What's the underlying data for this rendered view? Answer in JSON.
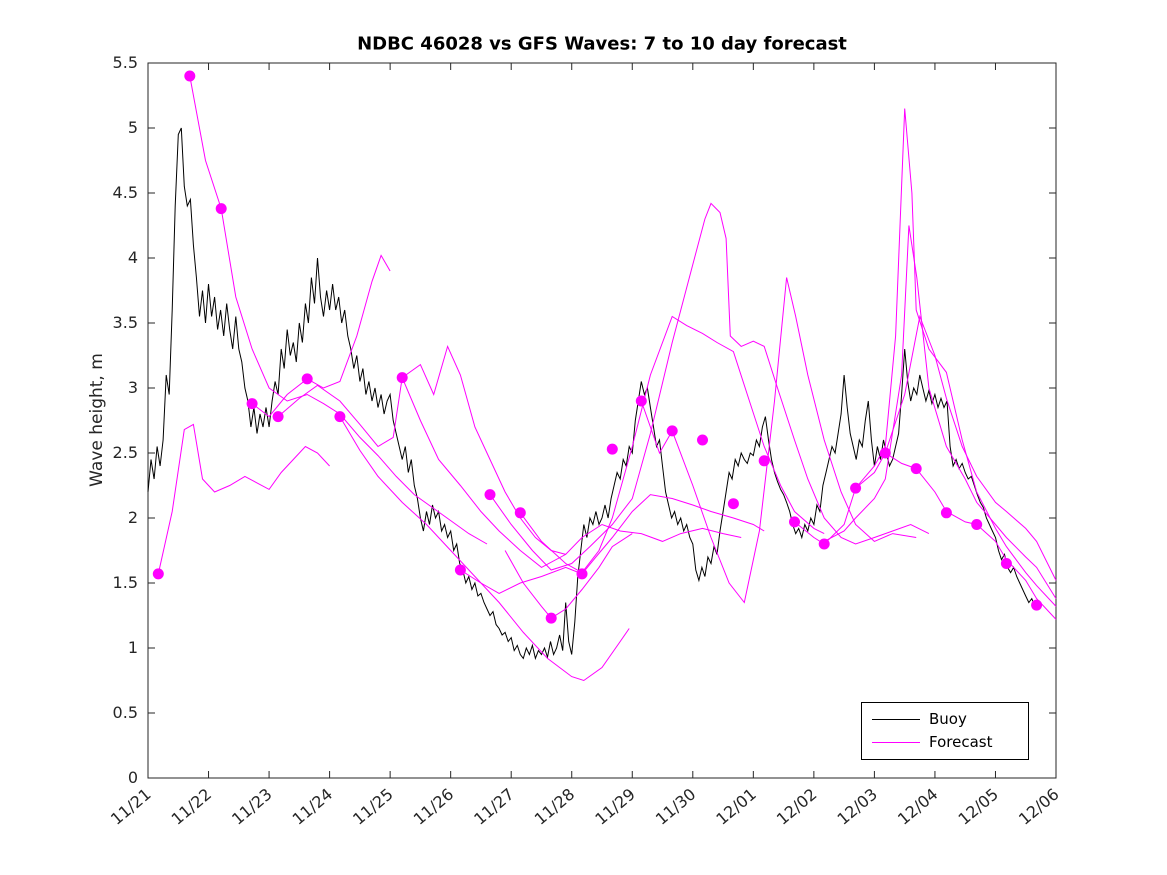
{
  "chart_data": {
    "type": "line",
    "title": "NDBC 46028 vs GFS Waves: 7 to 10 day forecast",
    "xlabel": "",
    "ylabel": "Wave height, m",
    "grid": false,
    "x_range_days": [
      0,
      15
    ],
    "ylim": [
      0,
      5.5
    ],
    "y_ticks": [
      0,
      0.5,
      1,
      1.5,
      2,
      2.5,
      3,
      3.5,
      4,
      4.5,
      5,
      5.5
    ],
    "x_tick_labels": [
      "11/21",
      "11/22",
      "11/23",
      "11/24",
      "11/25",
      "11/26",
      "11/27",
      "11/28",
      "11/29",
      "11/30",
      "12/01",
      "12/02",
      "12/03",
      "12/04",
      "12/05",
      "12/06"
    ],
    "colors": {
      "buoy": "#000000",
      "forecast": "#ff00ff",
      "axis": "#262626"
    },
    "legend": {
      "position": "bottom-right",
      "entries": [
        {
          "label": "Buoy",
          "color": "#000000"
        },
        {
          "label": "Forecast",
          "color": "#ff00ff"
        }
      ]
    },
    "buoy_series": {
      "name": "Buoy",
      "t_start": 0,
      "t_step": 0.05,
      "values": [
        2.2,
        2.45,
        2.3,
        2.55,
        2.4,
        2.6,
        3.1,
        2.95,
        3.6,
        4.4,
        4.95,
        5.0,
        4.55,
        4.4,
        4.45,
        4.1,
        3.85,
        3.55,
        3.75,
        3.5,
        3.8,
        3.55,
        3.7,
        3.45,
        3.6,
        3.4,
        3.65,
        3.45,
        3.3,
        3.55,
        3.3,
        3.2,
        3.0,
        2.9,
        2.7,
        2.85,
        2.65,
        2.8,
        2.7,
        2.85,
        2.7,
        2.9,
        3.05,
        2.95,
        3.3,
        3.15,
        3.45,
        3.25,
        3.35,
        3.2,
        3.5,
        3.35,
        3.65,
        3.5,
        3.85,
        3.65,
        4.0,
        3.7,
        3.55,
        3.75,
        3.6,
        3.8,
        3.6,
        3.7,
        3.5,
        3.6,
        3.4,
        3.3,
        3.15,
        3.25,
        3.05,
        3.15,
        2.95,
        3.05,
        2.9,
        3.0,
        2.85,
        2.95,
        2.8,
        2.9,
        2.95,
        2.75,
        2.65,
        2.55,
        2.45,
        2.55,
        2.35,
        2.45,
        2.25,
        2.15,
        2.0,
        1.9,
        2.05,
        1.95,
        2.1,
        2.0,
        2.05,
        1.9,
        1.95,
        1.85,
        1.9,
        1.75,
        1.8,
        1.65,
        1.6,
        1.5,
        1.55,
        1.45,
        1.5,
        1.4,
        1.42,
        1.35,
        1.3,
        1.25,
        1.28,
        1.18,
        1.15,
        1.1,
        1.12,
        1.05,
        1.08,
        0.98,
        1.02,
        0.95,
        0.92,
        1.0,
        0.95,
        1.02,
        0.92,
        0.98,
        0.95,
        1.0,
        0.93,
        1.05,
        0.95,
        1.0,
        1.1,
        0.98,
        1.35,
        1.05,
        0.95,
        1.2,
        1.55,
        1.75,
        1.95,
        1.85,
        2.0,
        1.95,
        2.05,
        1.95,
        2.0,
        2.1,
        2.0,
        2.15,
        2.25,
        2.35,
        2.3,
        2.45,
        2.4,
        2.55,
        2.5,
        2.75,
        2.9,
        3.05,
        2.95,
        3.0,
        2.85,
        2.7,
        2.55,
        2.6,
        2.4,
        2.2,
        2.1,
        2.0,
        2.05,
        1.95,
        2.0,
        1.9,
        1.95,
        1.85,
        1.8,
        1.6,
        1.52,
        1.62,
        1.55,
        1.7,
        1.65,
        1.78,
        1.72,
        1.9,
        2.05,
        2.2,
        2.35,
        2.3,
        2.45,
        2.4,
        2.5,
        2.45,
        2.42,
        2.5,
        2.48,
        2.6,
        2.55,
        2.7,
        2.78,
        2.6,
        2.45,
        2.35,
        2.28,
        2.22,
        2.18,
        2.12,
        2.05,
        1.95,
        1.88,
        1.92,
        1.85,
        1.95,
        1.9,
        2.0,
        1.95,
        2.1,
        2.05,
        2.25,
        2.35,
        2.45,
        2.55,
        2.5,
        2.65,
        2.8,
        3.1,
        2.85,
        2.65,
        2.55,
        2.45,
        2.6,
        2.55,
        2.75,
        2.9,
        2.6,
        2.4,
        2.55,
        2.45,
        2.6,
        2.5,
        2.4,
        2.45,
        2.55,
        2.65,
        2.95,
        3.3,
        3.05,
        2.9,
        3.0,
        2.95,
        3.1,
        3.0,
        2.9,
        2.98,
        2.88,
        2.95,
        2.85,
        2.92,
        2.85,
        2.9,
        2.55,
        2.4,
        2.45,
        2.38,
        2.42,
        2.35,
        2.3,
        2.32,
        2.25,
        2.18,
        2.12,
        2.08,
        2.0,
        1.95,
        1.9,
        1.85,
        1.75,
        1.68,
        1.72,
        1.62,
        1.58,
        1.62,
        1.55,
        1.5,
        1.45,
        1.4,
        1.35,
        1.38,
        1.32,
        1.35
      ]
    },
    "forecast_series": [
      [
        [
          0.17,
          1.57
        ],
        [
          0.4,
          2.05
        ],
        [
          0.6,
          2.68
        ],
        [
          0.75,
          2.72
        ],
        [
          0.9,
          2.3
        ],
        [
          1.1,
          2.2
        ],
        [
          1.35,
          2.25
        ],
        [
          1.6,
          2.32
        ],
        [
          1.8,
          2.27
        ],
        [
          2.0,
          2.22
        ],
        [
          2.2,
          2.35
        ],
        [
          2.4,
          2.45
        ],
        [
          2.6,
          2.55
        ],
        [
          2.8,
          2.5
        ],
        [
          3.0,
          2.4
        ]
      ],
      [
        [
          0.69,
          5.4
        ],
        [
          0.95,
          4.75
        ],
        [
          1.21,
          4.38
        ],
        [
          1.45,
          3.7
        ],
        [
          1.72,
          3.3
        ],
        [
          2.0,
          3.0
        ],
        [
          2.3,
          2.9
        ],
        [
          2.63,
          2.95
        ],
        [
          2.9,
          2.88
        ],
        [
          3.17,
          2.8
        ],
        [
          3.5,
          2.62
        ],
        [
          3.8,
          2.48
        ],
        [
          4.1,
          2.32
        ],
        [
          4.4,
          2.18
        ],
        [
          4.7,
          2.08
        ],
        [
          5.0,
          1.98
        ],
        [
          5.3,
          1.88
        ],
        [
          5.6,
          1.8
        ]
      ],
      [
        [
          1.72,
          2.88
        ],
        [
          2.0,
          2.78
        ],
        [
          2.3,
          2.95
        ],
        [
          2.63,
          3.07
        ],
        [
          2.9,
          3.0
        ],
        [
          3.17,
          3.05
        ],
        [
          3.45,
          3.4
        ],
        [
          3.7,
          3.82
        ],
        [
          3.85,
          4.02
        ],
        [
          4.0,
          3.9
        ]
      ],
      [
        [
          2.15,
          2.78
        ],
        [
          2.5,
          2.92
        ],
        [
          2.8,
          3.02
        ],
        [
          3.17,
          2.9
        ],
        [
          3.5,
          2.72
        ],
        [
          3.8,
          2.55
        ],
        [
          4.05,
          2.62
        ],
        [
          4.2,
          3.08
        ],
        [
          4.5,
          3.18
        ],
        [
          4.72,
          2.95
        ],
        [
          4.95,
          3.32
        ],
        [
          5.16,
          3.1
        ],
        [
          5.4,
          2.7
        ],
        [
          5.65,
          2.45
        ],
        [
          5.9,
          2.2
        ],
        [
          6.15,
          2.0
        ],
        [
          6.4,
          1.85
        ],
        [
          6.66,
          1.75
        ],
        [
          6.9,
          1.72
        ]
      ],
      [
        [
          3.17,
          2.78
        ],
        [
          3.5,
          2.52
        ],
        [
          3.8,
          2.32
        ],
        [
          4.2,
          2.12
        ],
        [
          4.6,
          1.95
        ],
        [
          5.0,
          1.75
        ],
        [
          5.4,
          1.55
        ],
        [
          5.8,
          1.35
        ],
        [
          6.2,
          1.12
        ],
        [
          6.6,
          0.92
        ],
        [
          7.0,
          0.78
        ],
        [
          7.2,
          0.75
        ],
        [
          7.5,
          0.85
        ],
        [
          7.8,
          1.05
        ],
        [
          7.95,
          1.15
        ]
      ],
      [
        [
          4.2,
          3.08
        ],
        [
          4.5,
          2.75
        ],
        [
          4.8,
          2.45
        ],
        [
          5.16,
          2.25
        ],
        [
          5.5,
          2.05
        ],
        [
          5.8,
          1.9
        ],
        [
          6.15,
          1.75
        ],
        [
          6.5,
          1.62
        ],
        [
          6.9,
          1.72
        ],
        [
          7.17,
          1.85
        ],
        [
          7.5,
          1.95
        ],
        [
          7.8,
          1.9
        ],
        [
          8.15,
          1.88
        ],
        [
          8.5,
          1.82
        ],
        [
          8.8,
          1.88
        ],
        [
          9.16,
          1.92
        ],
        [
          9.5,
          1.88
        ],
        [
          9.8,
          1.85
        ]
      ],
      [
        [
          5.16,
          1.6
        ],
        [
          5.5,
          1.5
        ],
        [
          5.8,
          1.42
        ],
        [
          6.15,
          1.5
        ],
        [
          6.5,
          1.55
        ],
        [
          6.9,
          1.62
        ],
        [
          7.17,
          1.57
        ],
        [
          7.4,
          1.7
        ],
        [
          7.67,
          1.85
        ],
        [
          8.0,
          2.05
        ],
        [
          8.3,
          2.18
        ],
        [
          8.66,
          2.15
        ],
        [
          9.0,
          2.1
        ],
        [
          9.3,
          2.05
        ],
        [
          9.67,
          2.0
        ],
        [
          10.0,
          1.95
        ],
        [
          10.18,
          1.9
        ]
      ],
      [
        [
          5.65,
          2.18
        ],
        [
          6.0,
          1.95
        ],
        [
          6.35,
          1.75
        ],
        [
          6.66,
          1.6
        ],
        [
          7.0,
          1.65
        ],
        [
          7.3,
          1.78
        ],
        [
          7.67,
          1.95
        ],
        [
          8.0,
          2.15
        ],
        [
          8.3,
          2.65
        ],
        [
          8.66,
          3.35
        ],
        [
          9.0,
          3.95
        ],
        [
          9.2,
          4.3
        ],
        [
          9.3,
          4.42
        ],
        [
          9.45,
          4.35
        ],
        [
          9.55,
          4.15
        ],
        [
          9.62,
          3.4
        ],
        [
          9.8,
          3.32
        ],
        [
          10.0,
          3.36
        ],
        [
          10.18,
          3.32
        ],
        [
          10.4,
          3.0
        ],
        [
          10.68,
          2.6
        ],
        [
          10.9,
          2.3
        ],
        [
          11.17,
          2.0
        ],
        [
          11.45,
          1.85
        ],
        [
          11.69,
          1.8
        ],
        [
          12.0,
          1.85
        ],
        [
          12.3,
          1.9
        ],
        [
          12.6,
          1.95
        ],
        [
          12.9,
          1.88
        ]
      ],
      [
        [
          6.15,
          2.04
        ],
        [
          6.5,
          1.82
        ],
        [
          6.9,
          1.65
        ],
        [
          7.17,
          1.58
        ],
        [
          7.45,
          1.75
        ],
        [
          7.67,
          2.0
        ],
        [
          8.0,
          2.55
        ],
        [
          8.3,
          3.1
        ],
        [
          8.66,
          3.55
        ],
        [
          8.9,
          3.48
        ],
        [
          9.16,
          3.42
        ],
        [
          9.4,
          3.35
        ],
        [
          9.67,
          3.28
        ],
        [
          9.9,
          2.95
        ],
        [
          10.18,
          2.55
        ],
        [
          10.45,
          2.25
        ],
        [
          10.68,
          2.05
        ],
        [
          11.0,
          1.92
        ],
        [
          11.17,
          1.88
        ]
      ],
      [
        [
          5.9,
          1.75
        ],
        [
          6.2,
          1.5
        ],
        [
          6.5,
          1.32
        ],
        [
          6.66,
          1.23
        ],
        [
          6.9,
          1.3
        ],
        [
          7.17,
          1.45
        ],
        [
          7.45,
          1.62
        ],
        [
          7.67,
          1.78
        ],
        [
          8.0,
          1.88
        ]
      ],
      [
        [
          8.15,
          2.9
        ],
        [
          8.45,
          2.5
        ],
        [
          8.66,
          2.67
        ],
        [
          9.0,
          2.25
        ],
        [
          9.3,
          1.85
        ],
        [
          9.6,
          1.5
        ],
        [
          9.85,
          1.35
        ],
        [
          10.1,
          1.9
        ],
        [
          10.35,
          2.9
        ],
        [
          10.55,
          3.85
        ],
        [
          10.7,
          3.55
        ],
        [
          10.9,
          3.1
        ],
        [
          11.17,
          2.6
        ],
        [
          11.45,
          2.2
        ],
        [
          11.69,
          1.95
        ],
        [
          12.0,
          1.82
        ],
        [
          12.3,
          1.88
        ],
        [
          12.69,
          1.85
        ]
      ],
      [
        [
          10.68,
          1.97
        ],
        [
          11.0,
          1.85
        ],
        [
          11.17,
          1.8
        ],
        [
          11.5,
          1.95
        ],
        [
          11.69,
          2.23
        ],
        [
          12.0,
          2.4
        ],
        [
          12.18,
          2.55
        ],
        [
          12.35,
          3.4
        ],
        [
          12.5,
          5.15
        ],
        [
          12.62,
          4.5
        ],
        [
          12.69,
          3.6
        ],
        [
          12.9,
          3.3
        ],
        [
          13.19,
          3.12
        ],
        [
          13.45,
          2.6
        ],
        [
          13.69,
          2.2
        ],
        [
          14.0,
          1.92
        ],
        [
          14.18,
          1.78
        ],
        [
          14.5,
          1.58
        ],
        [
          14.68,
          1.48
        ],
        [
          15.0,
          1.32
        ]
      ],
      [
        [
          11.17,
          1.82
        ],
        [
          11.5,
          1.9
        ],
        [
          11.69,
          2.0
        ],
        [
          12.0,
          2.15
        ],
        [
          12.18,
          2.3
        ],
        [
          12.45,
          3.1
        ],
        [
          12.57,
          4.25
        ],
        [
          12.7,
          3.85
        ],
        [
          12.9,
          3.0
        ],
        [
          13.19,
          2.55
        ],
        [
          13.5,
          2.3
        ],
        [
          13.69,
          2.12
        ],
        [
          14.0,
          1.95
        ],
        [
          14.18,
          1.85
        ],
        [
          14.5,
          1.7
        ],
        [
          14.68,
          1.62
        ],
        [
          15.0,
          1.38
        ]
      ],
      [
        [
          11.69,
          2.23
        ],
        [
          12.0,
          2.35
        ],
        [
          12.18,
          2.5
        ],
        [
          12.5,
          2.95
        ],
        [
          12.75,
          3.55
        ],
        [
          13.0,
          3.25
        ],
        [
          13.19,
          2.92
        ],
        [
          13.45,
          2.55
        ],
        [
          13.69,
          2.32
        ],
        [
          14.0,
          2.12
        ],
        [
          14.18,
          2.05
        ],
        [
          14.5,
          1.92
        ],
        [
          14.68,
          1.82
        ],
        [
          15.0,
          1.52
        ]
      ],
      [
        [
          12.18,
          2.5
        ],
        [
          12.45,
          2.42
        ],
        [
          12.69,
          2.38
        ],
        [
          13.0,
          2.2
        ],
        [
          13.19,
          2.05
        ],
        [
          13.5,
          1.97
        ],
        [
          13.69,
          1.95
        ],
        [
          14.0,
          1.82
        ],
        [
          14.18,
          1.68
        ],
        [
          14.5,
          1.52
        ],
        [
          14.68,
          1.38
        ],
        [
          15.0,
          1.22
        ]
      ]
    ],
    "forecast_markers": [
      [
        0.17,
        1.57
      ],
      [
        0.69,
        5.4
      ],
      [
        1.21,
        4.38
      ],
      [
        1.72,
        2.88
      ],
      [
        2.15,
        2.78
      ],
      [
        2.63,
        3.07
      ],
      [
        3.17,
        2.78
      ],
      [
        4.2,
        3.08
      ],
      [
        5.16,
        1.6
      ],
      [
        5.65,
        2.18
      ],
      [
        6.15,
        2.04
      ],
      [
        6.66,
        1.23
      ],
      [
        7.17,
        1.57
      ],
      [
        7.67,
        2.53
      ],
      [
        8.15,
        2.9
      ],
      [
        8.66,
        2.67
      ],
      [
        9.16,
        2.6
      ],
      [
        9.67,
        2.11
      ],
      [
        10.18,
        2.44
      ],
      [
        10.68,
        1.97
      ],
      [
        11.17,
        1.8
      ],
      [
        11.69,
        2.23
      ],
      [
        12.18,
        2.5
      ],
      [
        12.69,
        2.38
      ],
      [
        13.19,
        2.04
      ],
      [
        13.69,
        1.95
      ],
      [
        14.18,
        1.65
      ],
      [
        14.68,
        1.33
      ]
    ]
  }
}
